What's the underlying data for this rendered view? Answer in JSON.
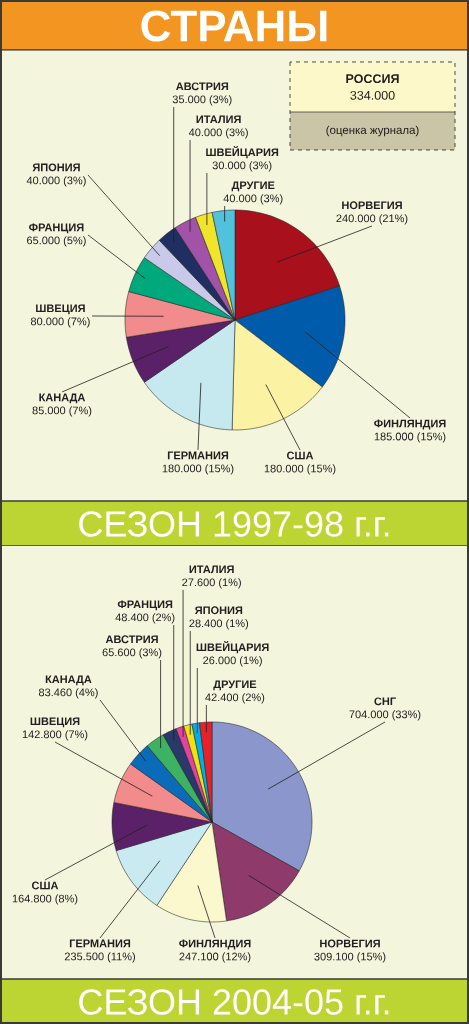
{
  "chart_data": [
    {
      "type": "pie",
      "title": "СТРАНЫ",
      "subtitle": "СЕЗОН 1997-98 г.г.",
      "categories": [
        "НОРВЕГИЯ",
        "ФИНЛЯНДИЯ",
        "США",
        "ГЕРМАНИЯ",
        "КАНАДА",
        "ШВЕЦИЯ",
        "ФРАНЦИЯ",
        "ЯПОНИЯ",
        "АВСТРИЯ",
        "ИТАЛИЯ",
        "ШВЕЙЦАРИЯ",
        "ДРУГИЕ"
      ],
      "values": [
        240000,
        185000,
        180000,
        180000,
        85000,
        80000,
        65000,
        40000,
        35000,
        40000,
        30000,
        40000
      ],
      "value_labels": [
        "240.000 (21%)",
        "185.000 (15%)",
        "180.000 (15%)",
        "180.000 (15%)",
        "85.000 (7%)",
        "80.000 (7%)",
        "65.000 (5%)",
        "40.000 (3%)",
        "35.000 (3%)",
        "40.000 (3%)",
        "30.000 (3%)",
        "40.000 (3%)"
      ],
      "colors": [
        "#a8101c",
        "#005bab",
        "#fbf3a3",
        "#c6e8ef",
        "#5b2168",
        "#f28b8b",
        "#00a97c",
        "#c9c9e9",
        "#1f2f62",
        "#a252a9",
        "#f0e52a",
        "#52c1db"
      ],
      "annotations": [
        "РОССИЯ",
        "334.000",
        "(оценка журнала)"
      ]
    },
    {
      "type": "pie",
      "subtitle": "СЕЗОН 2004-05 г.г.",
      "categories": [
        "СНГ",
        "НОРВЕГИЯ",
        "ФИНЛЯНДИЯ",
        "ГЕРМАНИЯ",
        "США",
        "ШВЕЦИЯ",
        "КАНАДА",
        "АВСТРИЯ",
        "ФРАНЦИЯ",
        "ИТАЛИЯ",
        "ЯПОНИЯ",
        "ШВЕЙЦАРИЯ",
        "ДРУГИЕ"
      ],
      "values": [
        704000,
        309100,
        247100,
        235500,
        164800,
        142800,
        83460,
        65600,
        48400,
        27600,
        28400,
        26000,
        42400
      ],
      "value_labels": [
        "704.000 (33%)",
        "309.100 (15%)",
        "247.100 (12%)",
        "235.500 (11%)",
        "164.800 (8%)",
        "142.800 (7%)",
        "83.460 (4%)",
        "65.600 (3%)",
        "48.400 (2%)",
        "27.600 (1%)",
        "28.400 (1%)",
        "26.000 (1%)",
        "42.400 (2%)"
      ],
      "colors": [
        "#8a96cc",
        "#8e3b6b",
        "#fcf8cd",
        "#c8eaf0",
        "#5b2168",
        "#f28b8b",
        "#0a6bb8",
        "#3cb262",
        "#29396a",
        "#e242a2",
        "#f1e012",
        "#00aeea",
        "#e62129"
      ]
    }
  ]
}
